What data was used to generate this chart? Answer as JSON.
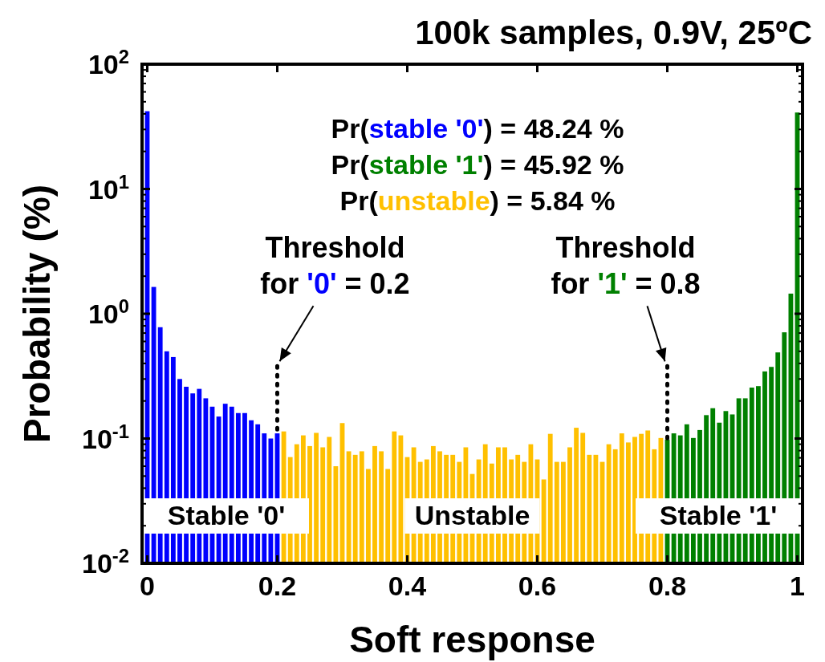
{
  "chart_data": {
    "type": "histogram",
    "title": "100k samples, 0.9V, 25ºC",
    "xlabel": "Soft response",
    "ylabel": "Probability (%)",
    "log": "y",
    "grid": false,
    "xlim": [
      -0.008,
      1.008
    ],
    "xticks": [
      0,
      0.2,
      0.4,
      0.6,
      0.8,
      1
    ],
    "ylim": [
      0.01,
      100
    ],
    "yticks": [
      {
        "value": 0.01,
        "label": "10$^{-2}$"
      },
      {
        "value": 0.1,
        "label": "10$^{-1}$"
      },
      {
        "value": 1,
        "label": "10$^{0}$"
      },
      {
        "value": 10,
        "label": "10$^{1}$"
      },
      {
        "value": 100,
        "label": "10$^{2}$"
      }
    ],
    "bins": [
      -0.005,
      0.005,
      0.015,
      0.025,
      0.035,
      0.045,
      0.055,
      0.065,
      0.075,
      0.085,
      0.095,
      0.105,
      0.115,
      0.125,
      0.135,
      0.145,
      0.155,
      0.165,
      0.175,
      0.185,
      0.195,
      0.205,
      0.215,
      0.225,
      0.235,
      0.245,
      0.255,
      0.265,
      0.275,
      0.285,
      0.295,
      0.305,
      0.315,
      0.325,
      0.335,
      0.345,
      0.355,
      0.365,
      0.375,
      0.385,
      0.395,
      0.405,
      0.415,
      0.425,
      0.435,
      0.445,
      0.455,
      0.465,
      0.475,
      0.485,
      0.495,
      0.505,
      0.515,
      0.525,
      0.535,
      0.545,
      0.555,
      0.565,
      0.575,
      0.585,
      0.595,
      0.605,
      0.615,
      0.625,
      0.635,
      0.645,
      0.655,
      0.665,
      0.675,
      0.685,
      0.695,
      0.705,
      0.715,
      0.725,
      0.735,
      0.745,
      0.755,
      0.765,
      0.775,
      0.785,
      0.795,
      0.805,
      0.815,
      0.825,
      0.835,
      0.845,
      0.855,
      0.865,
      0.875,
      0.885,
      0.895,
      0.905,
      0.915,
      0.925,
      0.935,
      0.945,
      0.955,
      0.965,
      0.975,
      0.985,
      0.995,
      1.005
    ],
    "series": [
      {
        "name": "Stable '0'",
        "color": "#0000ff",
        "values": [
          42,
          1.64,
          0.78,
          0.5,
          0.45,
          0.3,
          0.26,
          0.23,
          0.25,
          0.21,
          0.18,
          0.15,
          0.19,
          0.18,
          0.16,
          0.16,
          0.14,
          0.13,
          0.11,
          0.1,
          0.11,
          null,
          null,
          null,
          null,
          null,
          null,
          null,
          null,
          null,
          null,
          null,
          null,
          null,
          null,
          null,
          null,
          null,
          null,
          null,
          null,
          null,
          null,
          null,
          null,
          null,
          null,
          null,
          null,
          null,
          null,
          null,
          null,
          null,
          null,
          null,
          null,
          null,
          null,
          null,
          null,
          null,
          null,
          null,
          null,
          null,
          null,
          null,
          null,
          null,
          null,
          null,
          null,
          null,
          null,
          null,
          null,
          null,
          null,
          null,
          null,
          null,
          null,
          null,
          null,
          null,
          null,
          null,
          null,
          null,
          null,
          null,
          null,
          null,
          null,
          null,
          null,
          null,
          null,
          null,
          null
        ]
      },
      {
        "name": "Stable '1'",
        "color": "#008000",
        "values": [
          null,
          null,
          null,
          null,
          null,
          null,
          null,
          null,
          null,
          null,
          null,
          null,
          null,
          null,
          null,
          null,
          null,
          null,
          null,
          null,
          null,
          null,
          null,
          null,
          null,
          null,
          null,
          null,
          null,
          null,
          null,
          null,
          null,
          null,
          null,
          null,
          null,
          null,
          null,
          null,
          null,
          null,
          null,
          null,
          null,
          null,
          null,
          null,
          null,
          null,
          null,
          null,
          null,
          null,
          null,
          null,
          null,
          null,
          null,
          null,
          null,
          null,
          null,
          null,
          null,
          null,
          null,
          null,
          null,
          null,
          null,
          null,
          null,
          null,
          null,
          null,
          null,
          null,
          null,
          null,
          0.098,
          0.11,
          0.106,
          0.13,
          0.101,
          0.117,
          0.154,
          0.175,
          0.134,
          0.166,
          0.156,
          0.21,
          0.21,
          0.256,
          0.263,
          0.345,
          0.375,
          0.49,
          0.71,
          1.45,
          41
        ]
      },
      {
        "name": "Unstable",
        "color": "#ffc000",
        "values": [
          null,
          null,
          null,
          null,
          null,
          null,
          null,
          null,
          null,
          null,
          null,
          null,
          null,
          null,
          null,
          null,
          null,
          null,
          null,
          null,
          null,
          0.114,
          0.071,
          0.09,
          0.106,
          0.087,
          0.111,
          0.085,
          0.103,
          0.06,
          0.133,
          0.079,
          0.074,
          0.079,
          0.057,
          0.087,
          0.079,
          0.057,
          0.114,
          0.106,
          0.071,
          0.085,
          0.065,
          0.068,
          0.087,
          0.079,
          0.074,
          0.074,
          0.065,
          0.085,
          0.052,
          0.068,
          0.09,
          0.063,
          0.085,
          0.085,
          0.068,
          0.074,
          0.065,
          0.09,
          0.068,
          0.047,
          0.109,
          0.065,
          0.065,
          0.085,
          0.122,
          0.111,
          0.074,
          0.074,
          0.065,
          0.09,
          0.082,
          0.11,
          0.093,
          0.103,
          0.109,
          0.116,
          0.082,
          0.101,
          null,
          null,
          null,
          null,
          null,
          null,
          null,
          null,
          null,
          null,
          null,
          null,
          null,
          null,
          null,
          null,
          null,
          null,
          null,
          null,
          null
        ]
      }
    ],
    "annotations": [
      "Pr(stable '0') = 48.24 %",
      "Pr(stable '1') = 45.92 %",
      "Pr(unstable) = 5.84 %",
      {
        "text": "Threshold\nfor '0' = 0.2",
        "x": 0.2,
        "y": 0.38
      },
      {
        "text": "Threshold\nfor '1' = 0.8",
        "x": 0.8,
        "y": 0.38
      }
    ],
    "ref_lines": [
      {
        "axis": "x",
        "value": 0.2,
        "line_style": "dotted"
      },
      {
        "axis": "x",
        "value": 0.8,
        "line_style": "dotted"
      }
    ]
  }
}
